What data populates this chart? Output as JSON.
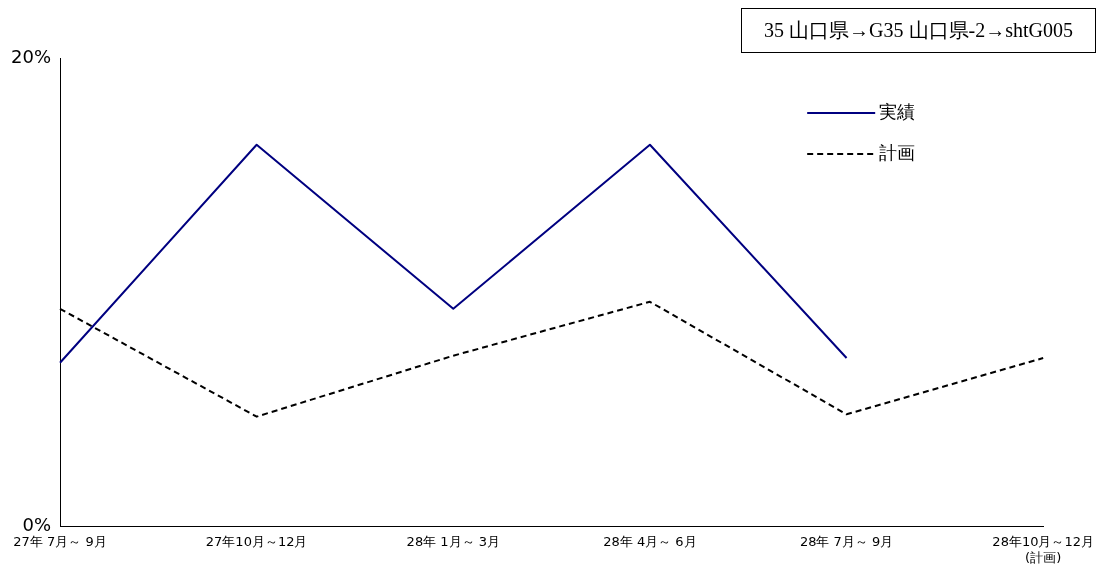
{
  "chart_data": {
    "type": "line",
    "categories": [
      "27年 7月～ 9月",
      "27年10月～12月",
      "28年 1月～ 3月",
      "28年 4月～ 6月",
      "28年 7月～ 9月",
      "28年10月～12月\n(計画)"
    ],
    "series": [
      {
        "name": "実績",
        "color": "#000080",
        "line_style": "solid",
        "values": [
          7.0,
          16.3,
          9.3,
          16.3,
          7.2,
          null
        ]
      },
      {
        "name": "計画",
        "color": "#000000",
        "line_style": "dashed",
        "values": [
          9.3,
          4.7,
          7.3,
          9.6,
          4.8,
          7.2
        ]
      }
    ],
    "ylim": [
      0,
      20
    ],
    "yticks": [
      {
        "value": 0,
        "label": "0%"
      },
      {
        "value": 20,
        "label": "20%"
      }
    ],
    "grid": false,
    "legend": "top right",
    "marker": "none",
    "annotations": [
      "35 山口県→G35  山口県-2→shtG005"
    ]
  }
}
